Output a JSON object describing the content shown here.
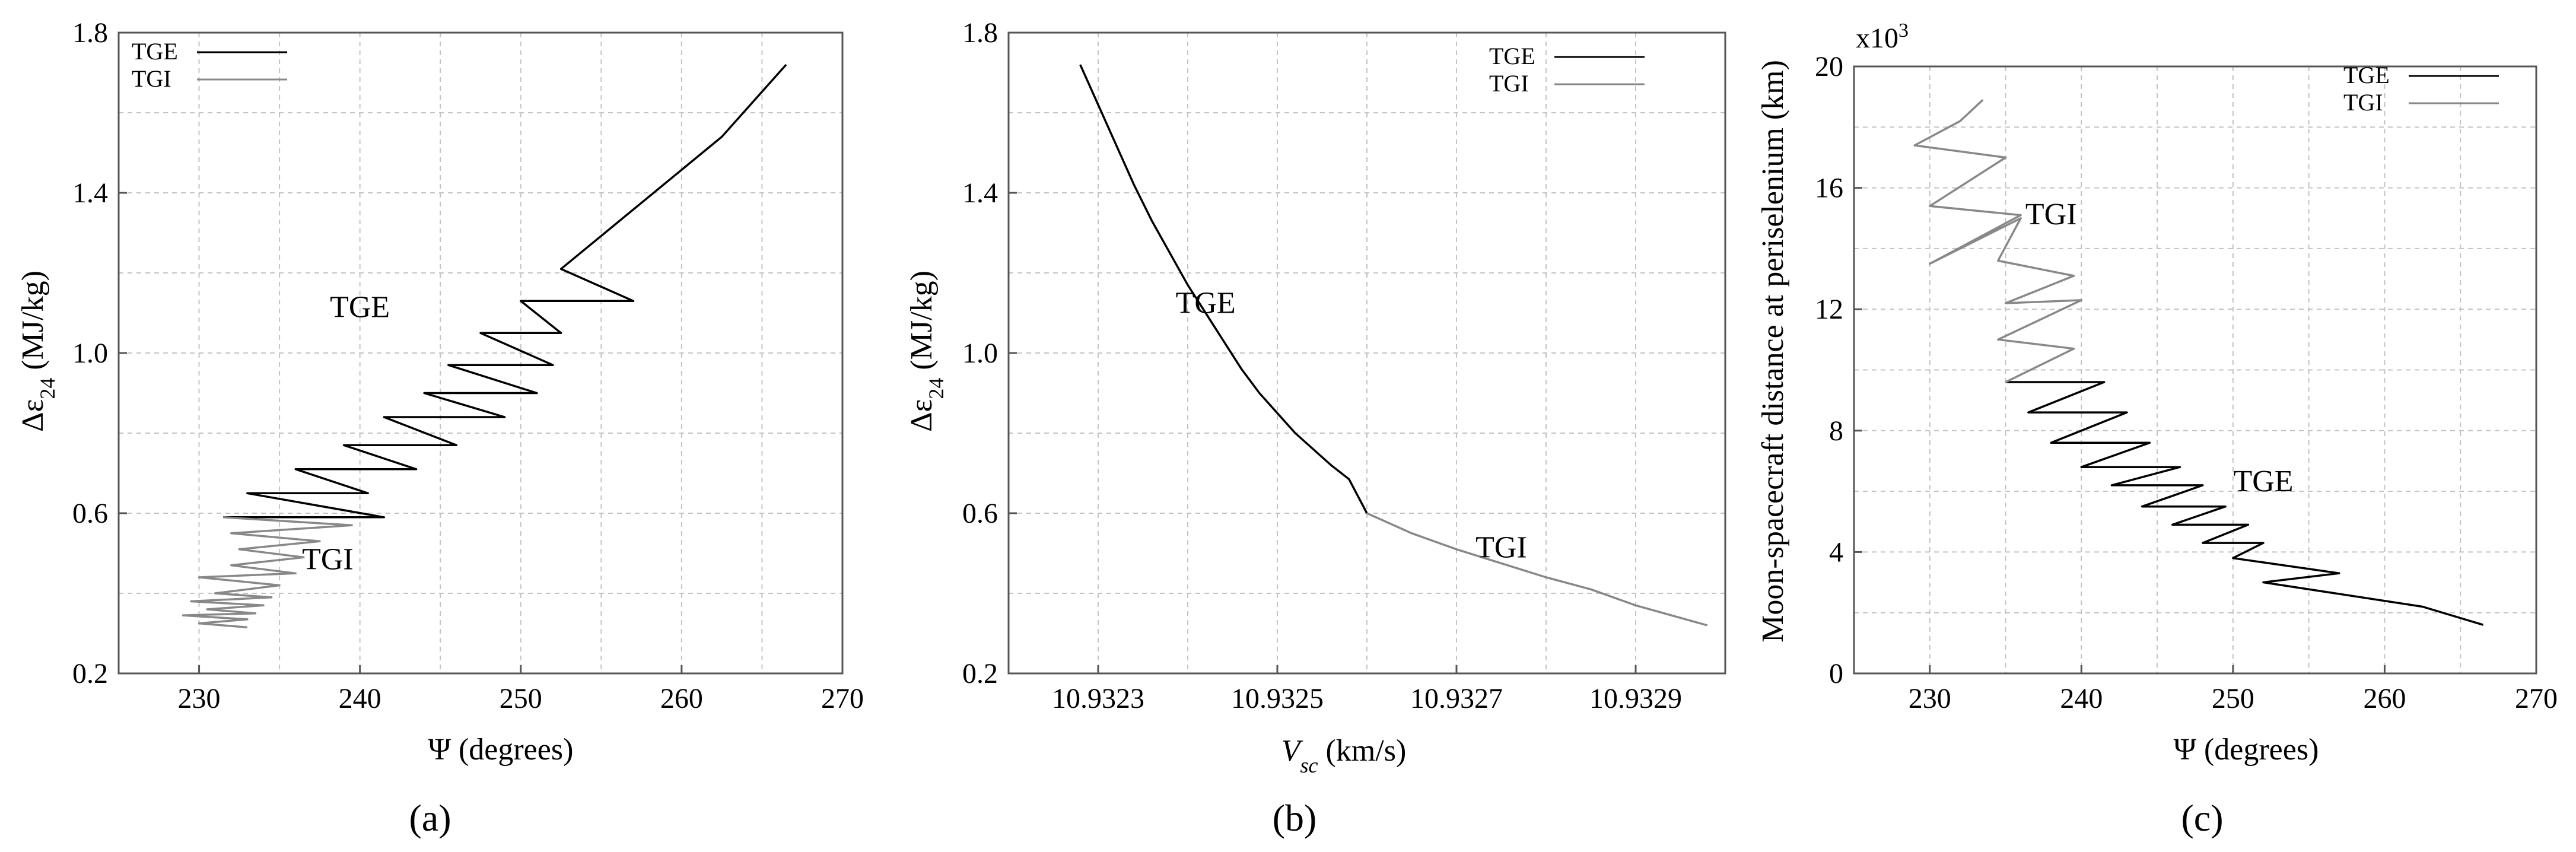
{
  "colors": {
    "tge": "#000000",
    "tgi": "#888888",
    "grid": "#c4c4c4",
    "axis": "#555555"
  },
  "chart_data": [
    {
      "type": "line",
      "panel_label": "(a)",
      "xlabel": "Ψ (degrees)",
      "ylabel": "Δε",
      "ylabel_sub": "24",
      "ylabel_units": " (MJ/kg)",
      "xlim": [
        225,
        270
      ],
      "ylim": [
        0.2,
        1.8
      ],
      "xticks": [
        230,
        240,
        250,
        260,
        270
      ],
      "xtick_labels": [
        "230",
        "240",
        "250",
        "260",
        "270"
      ],
      "yticks": [
        0.2,
        0.6,
        1.0,
        1.4,
        1.8
      ],
      "ytick_labels": [
        "0.2",
        "0.6",
        "1.0",
        "1.4",
        "1.8"
      ],
      "legend": [
        "TGE",
        "TGI"
      ],
      "legend_position": "top-left",
      "annotations": [
        {
          "text": "TGE",
          "x": 240,
          "y": 1.09,
          "series": "TGE"
        },
        {
          "text": "TGI",
          "x": 238,
          "y": 0.46,
          "series": "TGI"
        }
      ],
      "series": [
        {
          "name": "TGE",
          "x": [
            231.5,
            241.5,
            233.0,
            240.5,
            236.0,
            243.5,
            239.0,
            246.0,
            241.5,
            249.0,
            244.0,
            251.0,
            245.5,
            252.0,
            247.5,
            252.5,
            250.0,
            257.0,
            252.5,
            262.5,
            266.5
          ],
          "y": [
            0.59,
            0.59,
            0.65,
            0.65,
            0.71,
            0.71,
            0.77,
            0.77,
            0.84,
            0.84,
            0.9,
            0.9,
            0.97,
            0.97,
            1.05,
            1.05,
            1.13,
            1.13,
            1.21,
            1.54,
            1.72
          ]
        },
        {
          "name": "TGI",
          "x": [
            231.5,
            239.5,
            232.0,
            237.5,
            232.5,
            236.5,
            232.0,
            236.0,
            230.0,
            235.0,
            231.0,
            234.5,
            229.5,
            234.0,
            230.5,
            233.5,
            229.0,
            233.0,
            230.0,
            233.0
          ],
          "y": [
            0.59,
            0.57,
            0.55,
            0.53,
            0.51,
            0.49,
            0.47,
            0.45,
            0.44,
            0.42,
            0.4,
            0.39,
            0.38,
            0.37,
            0.36,
            0.35,
            0.345,
            0.335,
            0.325,
            0.315
          ]
        }
      ]
    },
    {
      "type": "line",
      "panel_label": "(b)",
      "xlabel": "V",
      "xlabel_sub": "sc",
      "xlabel_units": " (km/s)",
      "ylabel": "Δε",
      "ylabel_sub": "24",
      "ylabel_units": " (MJ/kg)",
      "xlim": [
        10.9322,
        10.933
      ],
      "ylim": [
        0.2,
        1.8
      ],
      "xticks": [
        10.9323,
        10.9325,
        10.9327,
        10.9329
      ],
      "xtick_labels": [
        "10.9323",
        "10.9325",
        "10.9327",
        "10.9329"
      ],
      "yticks": [
        0.2,
        0.6,
        1.0,
        1.4,
        1.8
      ],
      "ytick_labels": [
        "0.2",
        "0.6",
        "1.0",
        "1.4",
        "1.8"
      ],
      "legend": [
        "TGE",
        "TGI"
      ],
      "legend_position": "top-right",
      "annotations": [
        {
          "text": "TGE",
          "x": 10.93242,
          "y": 1.1,
          "series": "TGE"
        },
        {
          "text": "TGI",
          "x": 10.93275,
          "y": 0.49,
          "series": "TGI"
        }
      ],
      "series": [
        {
          "name": "TGE",
          "x": [
            10.93228,
            10.9323,
            10.93232,
            10.93234,
            10.93236,
            10.93238,
            10.9324,
            10.93242,
            10.93244,
            10.93246,
            10.93248,
            10.9325,
            10.93252,
            10.93254,
            10.93256,
            10.93258,
            10.9326
          ],
          "y": [
            1.72,
            1.62,
            1.52,
            1.42,
            1.33,
            1.25,
            1.17,
            1.1,
            1.03,
            0.96,
            0.9,
            0.85,
            0.8,
            0.76,
            0.72,
            0.685,
            0.6
          ]
        },
        {
          "name": "TGI",
          "x": [
            10.9326,
            10.93265,
            10.9327,
            10.93275,
            10.9328,
            10.93285,
            10.9329,
            10.93298
          ],
          "y": [
            0.6,
            0.55,
            0.51,
            0.475,
            0.44,
            0.41,
            0.37,
            0.32
          ]
        }
      ]
    },
    {
      "type": "line",
      "panel_label": "(c)",
      "xlabel": "Ψ (degrees)",
      "ylabel": "Moon-spacecraft distance at periselenium (km)",
      "y_multiplier": "x10",
      "y_multiplier_exp": "3",
      "xlim": [
        225,
        270
      ],
      "ylim": [
        0,
        20
      ],
      "xticks": [
        230,
        240,
        250,
        260,
        270
      ],
      "xtick_labels": [
        "230",
        "240",
        "250",
        "260",
        "270"
      ],
      "yticks": [
        0,
        4,
        8,
        12,
        16,
        20
      ],
      "ytick_labels": [
        "0",
        "4",
        "8",
        "12",
        "16",
        "20"
      ],
      "legend": [
        "TGE",
        "TGI"
      ],
      "legend_position": "top-right",
      "annotations": [
        {
          "text": "TGE",
          "x": 252,
          "y": 6.0,
          "series": "TGE"
        },
        {
          "text": "TGI",
          "x": 238,
          "y": 14.8,
          "series": "TGI"
        }
      ],
      "series": [
        {
          "name": "TGE",
          "x": [
            235.0,
            241.5,
            236.5,
            243.0,
            238.0,
            244.5,
            240.0,
            246.5,
            242.0,
            248.0,
            244.0,
            249.5,
            246.0,
            251.0,
            248.0,
            252.0,
            250.0,
            257.0,
            252.0,
            262.5,
            266.5
          ],
          "y": [
            9.6,
            9.6,
            8.6,
            8.6,
            7.6,
            7.6,
            6.8,
            6.8,
            6.2,
            6.2,
            5.5,
            5.5,
            4.9,
            4.9,
            4.3,
            4.3,
            3.8,
            3.3,
            3.0,
            2.2,
            1.6
          ]
        },
        {
          "name": "TGI",
          "x": [
            235.0,
            239.5,
            234.5,
            240.0,
            235.0,
            239.5,
            234.5,
            236.0,
            230.0,
            236.0,
            230.0,
            235.0,
            229.0,
            232.0,
            233.5
          ],
          "y": [
            9.6,
            10.7,
            11.0,
            12.3,
            12.2,
            13.1,
            13.6,
            15.0,
            13.5,
            15.1,
            15.4,
            17.0,
            17.4,
            18.2,
            18.9
          ]
        }
      ]
    }
  ]
}
